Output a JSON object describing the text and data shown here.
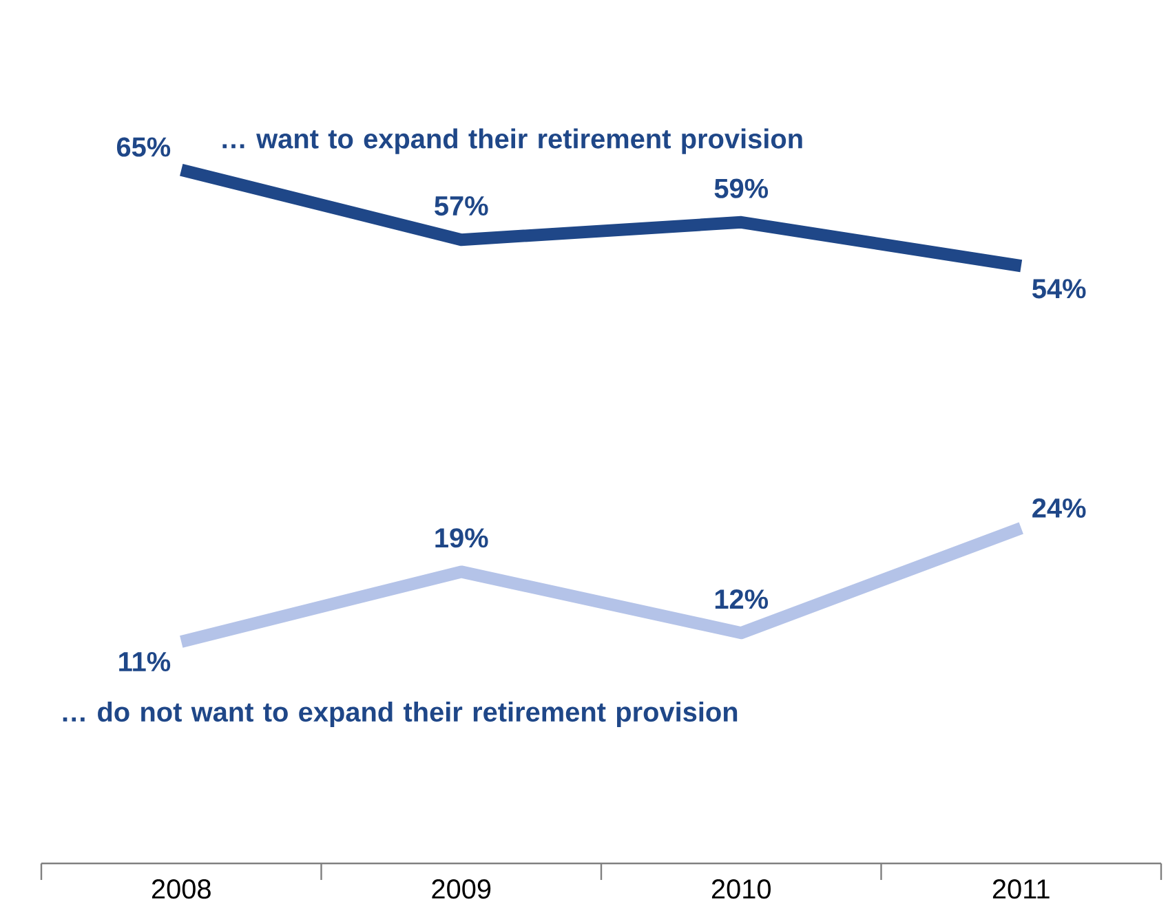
{
  "chart_data": {
    "type": "line",
    "categories": [
      "2008",
      "2009",
      "2010",
      "2011"
    ],
    "series": [
      {
        "name": "… want to expand their retirement provision",
        "color": "#1f4788",
        "values": [
          65,
          57,
          59,
          54
        ],
        "value_labels": [
          "65%",
          "57%",
          "59%",
          "54%"
        ]
      },
      {
        "name": "… do not want to expand their retirement provision",
        "color": "#b4c3e8",
        "values": [
          11,
          19,
          12,
          24
        ],
        "value_labels": [
          "11%",
          "19%",
          "12%",
          "24%"
        ]
      }
    ]
  }
}
